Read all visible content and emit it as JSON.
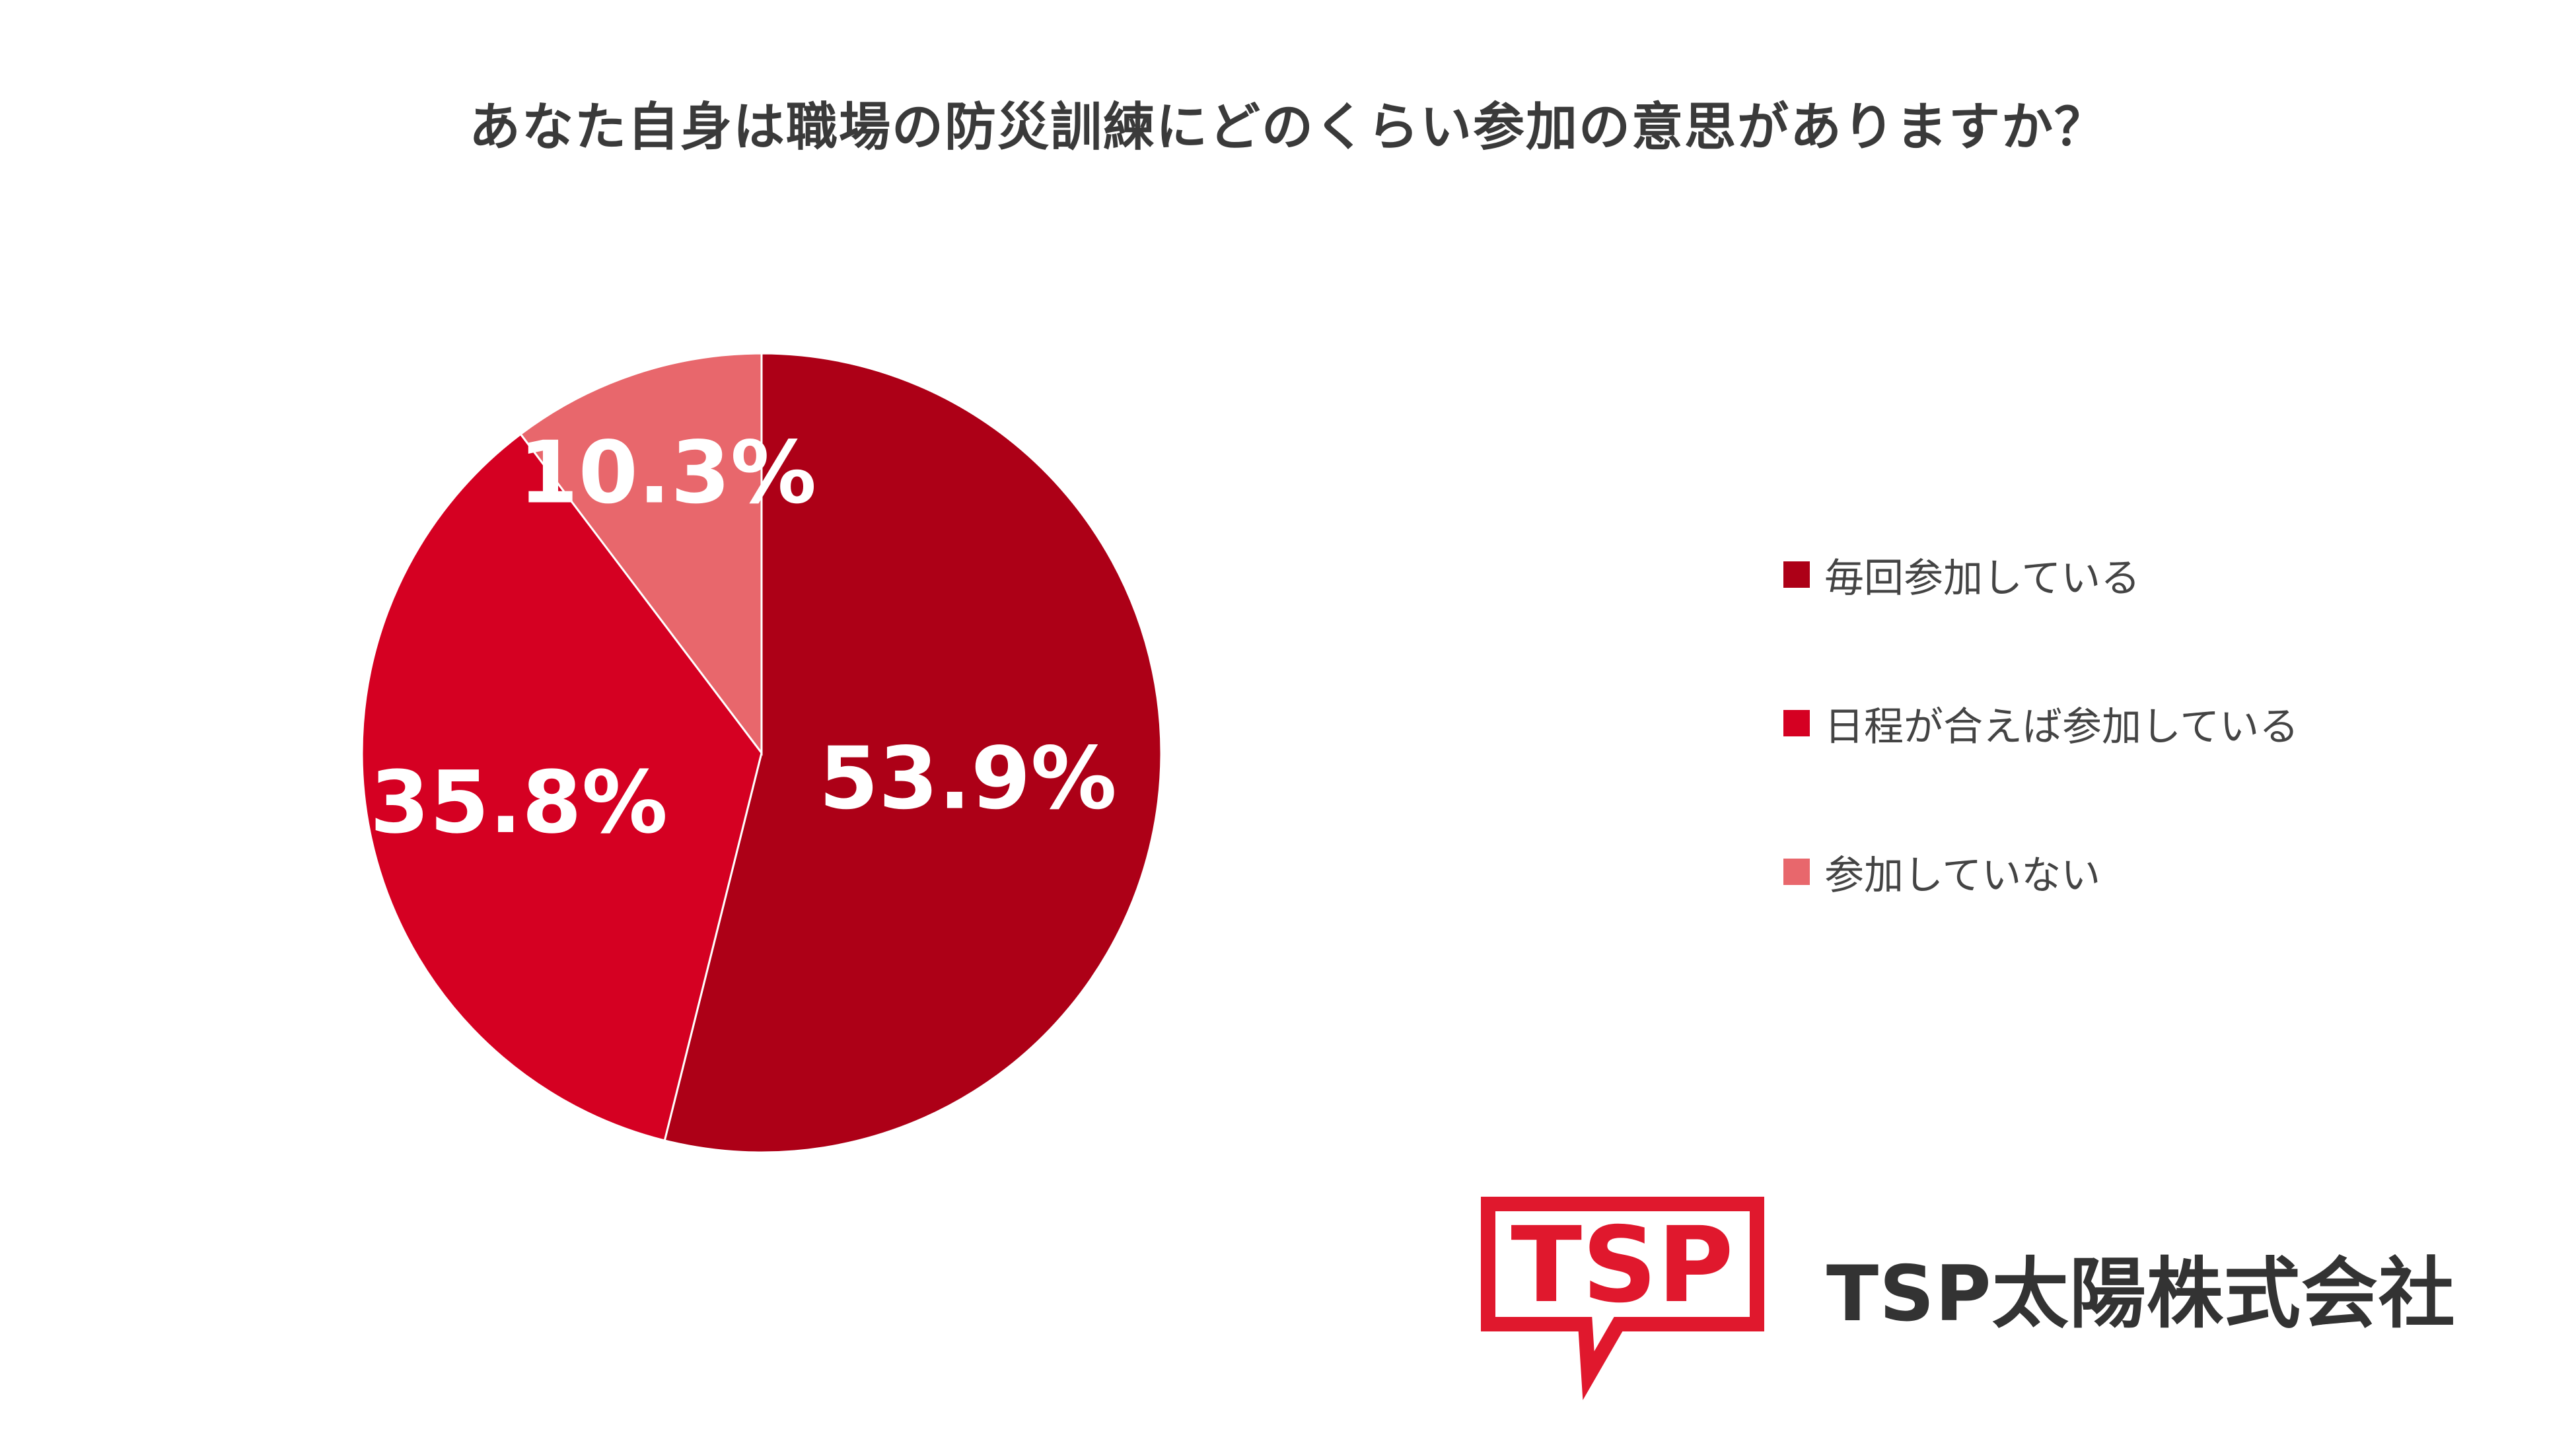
{
  "chart_data": {
    "type": "pie",
    "title": "あなた自身は職場の防災訓練にどのくらい参加の意思がありますか？",
    "slices": [
      {
        "label": "毎回参加している",
        "value": 53.9,
        "display": "53.9%",
        "color": "#ad0017"
      },
      {
        "label": "日程が合えば参加している",
        "value": 35.8,
        "display": "35.8%",
        "color": "#d50022"
      },
      {
        "label": "参加していない",
        "value": 10.3,
        "display": "10.3%",
        "color": "#e8676c"
      }
    ],
    "start_angle_deg": 0,
    "direction": "clockwise",
    "legend_position": "right"
  },
  "branding": {
    "logo_text": "TSP",
    "company_name": "TSP太陽株式会社",
    "brand_color": "#e0182d"
  }
}
